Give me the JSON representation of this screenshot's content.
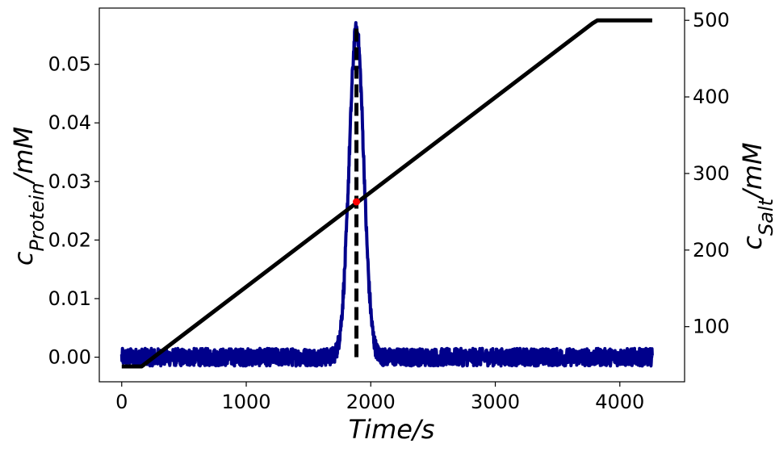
{
  "chart_data": {
    "type": "line",
    "xlabel": "Time/s",
    "ylabel_left": {
      "main": "c",
      "sub": "Protein",
      "rest": "/mM"
    },
    "ylabel_right": {
      "main": "c",
      "sub": "Salt",
      "rest": "/mM"
    },
    "xlim": [
      -180,
      4520
    ],
    "ylim_left": [
      -0.0042,
      0.0596
    ],
    "ylim_right": [
      28,
      516
    ],
    "xticks": [
      0,
      1000,
      2000,
      3000,
      4000
    ],
    "xtick_labels": [
      "0",
      "1000",
      "2000",
      "3000",
      "4000"
    ],
    "yticks_left": [
      0.0,
      0.01,
      0.02,
      0.03,
      0.04,
      0.05
    ],
    "ytick_labels_left": [
      "0.00",
      "0.01",
      "0.02",
      "0.03",
      "0.04",
      "0.05"
    ],
    "yticks_right": [
      100,
      200,
      300,
      400,
      500
    ],
    "ytick_labels_right": [
      "100",
      "200",
      "300",
      "400",
      "500"
    ],
    "grid": false,
    "series": [
      {
        "axis": "left",
        "color": "#00008b",
        "kind": "noisy-gaussian-peak",
        "x_range": [
          0,
          4260
        ],
        "baseline": 0.0,
        "noise_amplitude": 0.0015,
        "peak_x": 1885,
        "peak_height": 0.056,
        "peak_sigma": 58
      },
      {
        "axis": "right",
        "color": "#000000",
        "kind": "line",
        "x": [
          0,
          160,
          3780,
          3820,
          4260
        ],
        "y": [
          48,
          48,
          496,
          500,
          500
        ]
      },
      {
        "axis": "left",
        "color": "#000000",
        "kind": "vline-dashed",
        "x": 1885,
        "y": [
          0.0,
          0.057
        ]
      }
    ],
    "markers": [
      {
        "axis": "right",
        "x": 1885,
        "y": 263,
        "color": "#ff0000"
      }
    ]
  }
}
